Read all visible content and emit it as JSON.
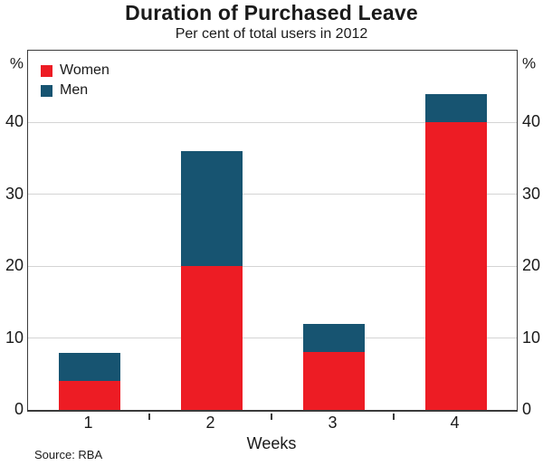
{
  "header": {
    "title": "Duration of Purchased Leave",
    "subtitle": "Per cent of total users in 2012"
  },
  "chart_data": {
    "type": "bar",
    "stacked": true,
    "categories": [
      "1",
      "2",
      "3",
      "4"
    ],
    "series": [
      {
        "name": "Women",
        "color": "#ed1c24",
        "values": [
          4,
          20,
          8,
          40
        ]
      },
      {
        "name": "Men",
        "color": "#175471",
        "values": [
          4,
          16,
          4,
          4
        ]
      }
    ],
    "totals": [
      8,
      36,
      12,
      44
    ],
    "title": "Duration of Purchased Leave",
    "subtitle": "Per cent of total users in 2012",
    "xlabel": "Weeks",
    "ylabel": "%",
    "unit_label_left": "%",
    "unit_label_right": "%",
    "yticks": [
      0,
      10,
      20,
      30,
      40
    ],
    "ylim": [
      0,
      50
    ],
    "grid": true,
    "dual_axis_labels": true,
    "legend_position": "top-left"
  },
  "footer": {
    "source": "Source: RBA"
  },
  "colors": {
    "women": "#ed1c24",
    "men": "#175471",
    "gridline": "#d4d4d4",
    "frame": "#3b3b3b",
    "text": "#1a1a1a"
  }
}
